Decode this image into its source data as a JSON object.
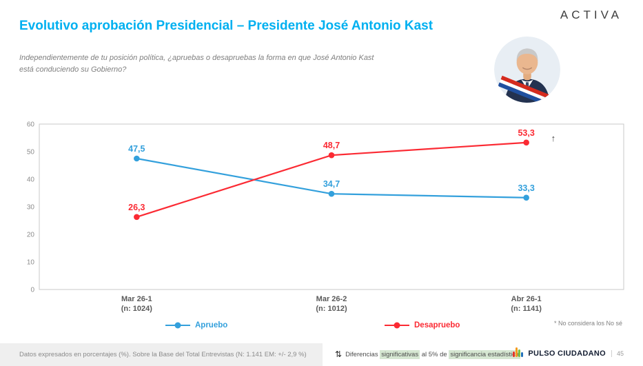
{
  "header": {
    "title": "Evolutivo aprobación Presidencial – Presidente José Antonio Kast",
    "logo": "ACTIVA",
    "subtitle_line1": "Independientemente de tu posición política, ¿apruebas o desapruebas la forma en que José Antonio Kast",
    "subtitle_line2": "está conduciendo su Gobierno?"
  },
  "chart_data": {
    "type": "line",
    "title": "",
    "categories": [
      "Mar 26-1",
      "Mar 26-2",
      "Abr 26-1"
    ],
    "category_sublabels": [
      "(n: 1024)",
      "(n: 1012)",
      "(n: 1141)"
    ],
    "series": [
      {
        "name": "Apruebo",
        "color": "#33a0dc",
        "values": [
          47.5,
          34.7,
          33.3
        ],
        "value_labels": [
          "47,5",
          "34,7",
          "33,3"
        ]
      },
      {
        "name": "Desapruebo",
        "color": "#fb2a33",
        "values": [
          26.3,
          48.7,
          53.3
        ],
        "value_labels": [
          "26,3",
          "48,7",
          "53,3"
        ]
      }
    ],
    "ylim": [
      0,
      60
    ],
    "yticks": [
      0,
      10,
      20,
      30,
      40,
      50,
      60
    ],
    "grid": false,
    "legend_position": "bottom",
    "annotation": {
      "text": "↑",
      "series": 1,
      "point": 2
    }
  },
  "footnote": "* No considera los No sé",
  "footer": {
    "left_note": "Datos expresados en porcentajes (%). Sobre la Base del Total Entrevistas (N: 1.141  EM: +/- 2,9 %)",
    "significance": {
      "icon": "⇅",
      "parts": [
        {
          "text": "Diferencias ",
          "highlight": false
        },
        {
          "text": "significativas",
          "highlight": true
        },
        {
          "text": " al 5% de ",
          "highlight": false
        },
        {
          "text": "significancia estadística",
          "highlight": true
        }
      ]
    },
    "brand": "PULSO CIUDADANO",
    "page": "45"
  }
}
